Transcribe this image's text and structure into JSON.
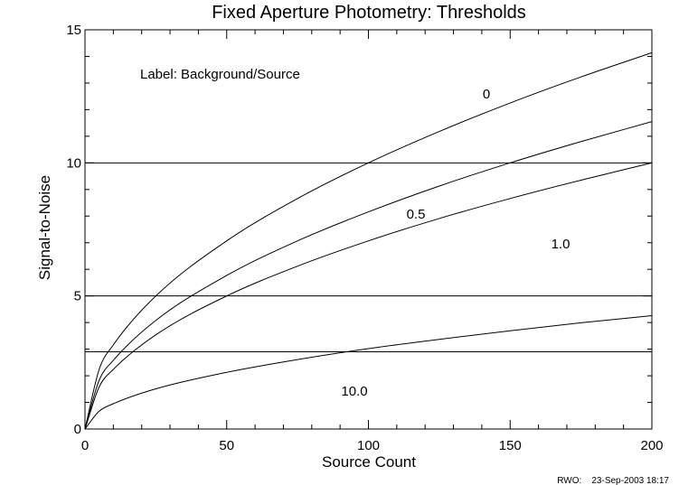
{
  "chart_data": {
    "type": "line",
    "title": "Fixed Aperture Photometry: Thresholds",
    "xlabel": "Source Count",
    "ylabel": "Signal-to-Noise",
    "xlim": [
      0,
      200
    ],
    "ylim": [
      0,
      15
    ],
    "x_ticks": [
      "0",
      "50",
      "100",
      "150",
      "200"
    ],
    "y_ticks": [
      "0",
      "5",
      "10",
      "15"
    ],
    "annotation": "Label: Background/Source",
    "footer": "RWO:    23-Sep-2003 18:17",
    "grid": false,
    "x": [
      0,
      5,
      10,
      25,
      50,
      75,
      100,
      125,
      150,
      175,
      200
    ],
    "series": [
      {
        "name": "0",
        "values": [
          0,
          2.24,
          3.16,
          5.0,
          7.07,
          8.66,
          10.0,
          11.18,
          12.25,
          13.23,
          14.14
        ]
      },
      {
        "name": "0.5",
        "values": [
          0,
          1.83,
          2.58,
          4.08,
          5.77,
          7.07,
          8.16,
          9.13,
          10.0,
          10.8,
          11.55
        ]
      },
      {
        "name": "1.0",
        "values": [
          0,
          1.58,
          2.24,
          3.54,
          5.0,
          6.12,
          7.07,
          7.91,
          8.66,
          9.35,
          10.0
        ]
      },
      {
        "name": "10.0",
        "values": [
          0,
          0.67,
          0.95,
          1.51,
          2.13,
          2.61,
          3.02,
          3.37,
          3.69,
          3.99,
          4.26
        ]
      }
    ],
    "hlines": [
      10,
      5,
      2.9
    ]
  }
}
